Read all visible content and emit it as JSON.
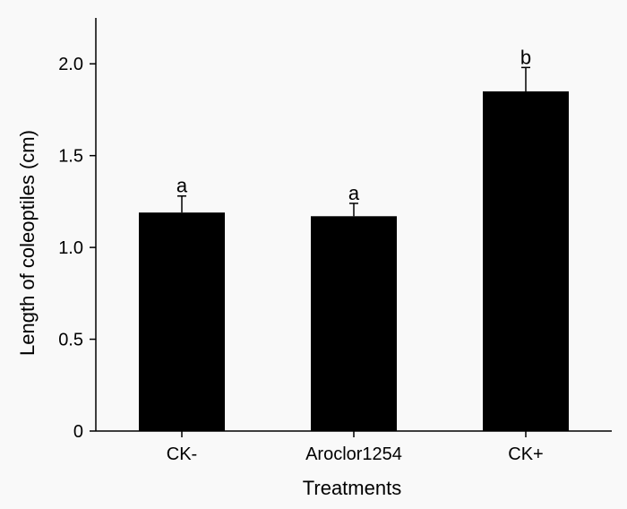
{
  "chart_data": {
    "type": "bar",
    "categories": [
      "CK-",
      "Aroclor1254",
      "CK+"
    ],
    "values": [
      1.19,
      1.17,
      1.85
    ],
    "errors": [
      0.09,
      0.07,
      0.13
    ],
    "significance_labels": [
      "a",
      "a",
      "b"
    ],
    "xlabel": "Treatments",
    "ylabel": "Length of coleoptiles (cm)",
    "ylim": [
      0,
      2.25
    ],
    "yticks": [
      0,
      0.5,
      1.0,
      1.5,
      2.0
    ],
    "ytick_labels": [
      "0",
      "0.5",
      "1.0",
      "1.5",
      "2.0"
    ],
    "grid": false,
    "bar_color": "#000000",
    "background_color": "#f9f9f9"
  }
}
